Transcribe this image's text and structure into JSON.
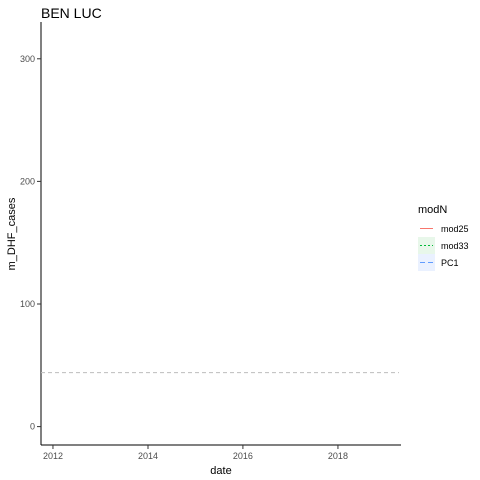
{
  "chart_data": {
    "type": "line",
    "title": "BEN LUC",
    "xlabel": "date",
    "ylabel": "m_DHF_cases",
    "x_ticks": [
      "2012",
      "2014",
      "2016",
      "2018"
    ],
    "y_ticks": [
      0,
      100,
      200,
      300
    ],
    "xlim": [
      "2011-10-01",
      "2019-05-01"
    ],
    "ylim": [
      -15,
      330
    ],
    "grid": false,
    "reference_line": {
      "y": 44,
      "style": "dashed",
      "color": "#bdbdbd"
    },
    "legend": {
      "title": "modN",
      "placement": "right",
      "items": [
        {
          "label": "mod25",
          "color": "#f8766d",
          "dash": "",
          "fill": "#ffffff"
        },
        {
          "label": "mod33",
          "color": "#00ba38",
          "dash": "2,2",
          "fill": "#e8f7ea"
        },
        {
          "label": "PC1",
          "color": "#619cff",
          "dash": "5,3",
          "fill": "#eaf1ff"
        }
      ]
    }
  }
}
